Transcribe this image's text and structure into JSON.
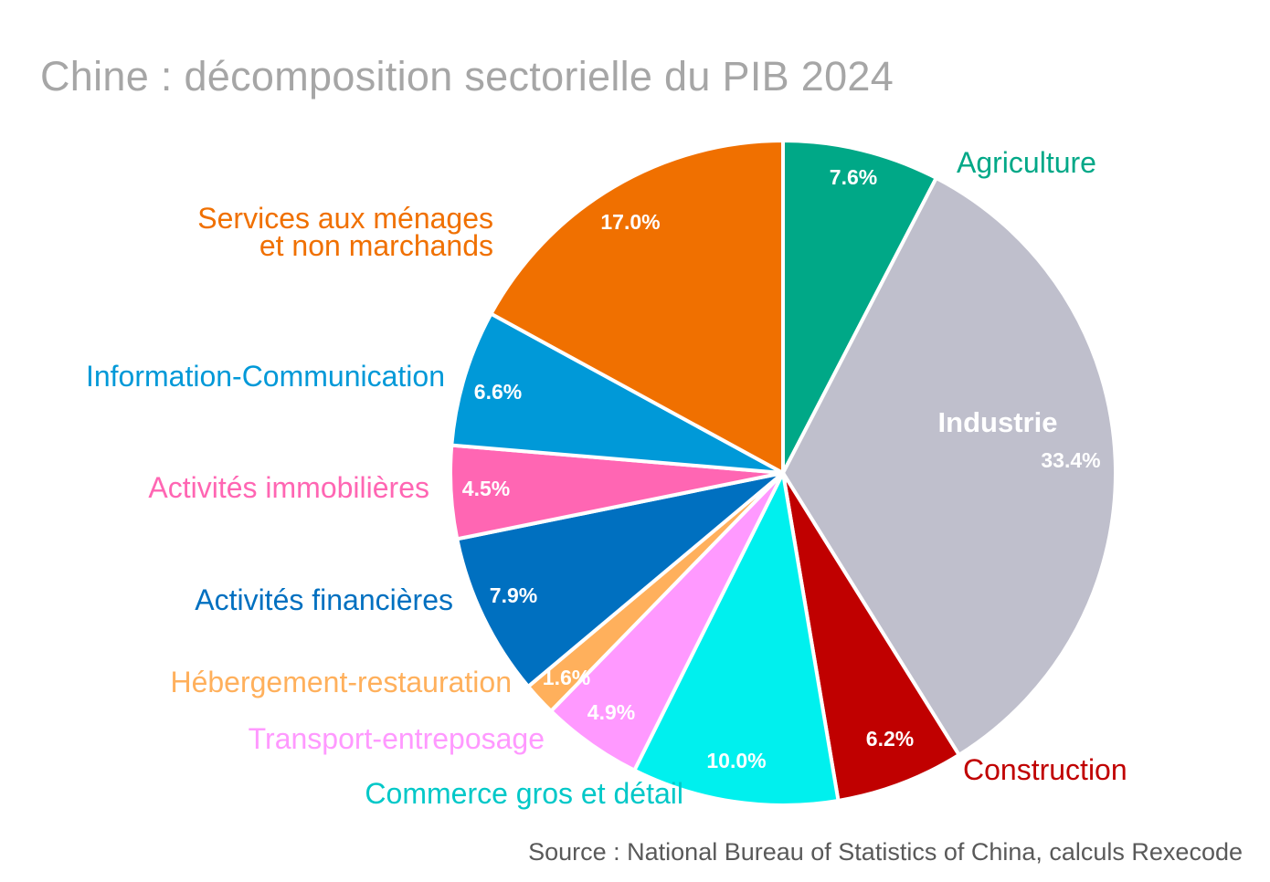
{
  "chart_data": {
    "type": "pie",
    "title": "Chine : décomposition sectorielle du PIB 2024",
    "source": "Source : National Bureau of Statistics of China, calculs Rexecode",
    "slices": [
      {
        "name": "Agriculture",
        "value": 7.6,
        "label": "7.6%",
        "color": "#00a887"
      },
      {
        "name": "Industrie",
        "value": 33.4,
        "label": "33.4%",
        "color": "#bfbfcc",
        "label_color": "#ffffff"
      },
      {
        "name": "Construction",
        "value": 6.2,
        "label": "6.2%",
        "color": "#c00000"
      },
      {
        "name": "Commerce gros et détail",
        "value": 10.0,
        "label": "10.0%",
        "color": "#00f0ee",
        "label_color": "#00c8c8"
      },
      {
        "name": "Transport-entreposage",
        "value": 4.9,
        "label": "4.9%",
        "color": "#ff99ff"
      },
      {
        "name": "Hébergement-restauration",
        "value": 1.6,
        "label": "1.6%",
        "color": "#ffb05c"
      },
      {
        "name": "Activités financières",
        "value": 7.9,
        "label": "7.9%",
        "color": "#0070c0"
      },
      {
        "name": "Activités immobilières",
        "value": 4.5,
        "label": "4.5%",
        "color": "#ff66b3"
      },
      {
        "name": "Information-Communication",
        "value": 6.6,
        "label": "6.6%",
        "color": "#0099d8"
      },
      {
        "name": "Services aux ménages\net non marchands",
        "value": 17.0,
        "label": "17.0%",
        "color": "#f07000"
      }
    ]
  }
}
